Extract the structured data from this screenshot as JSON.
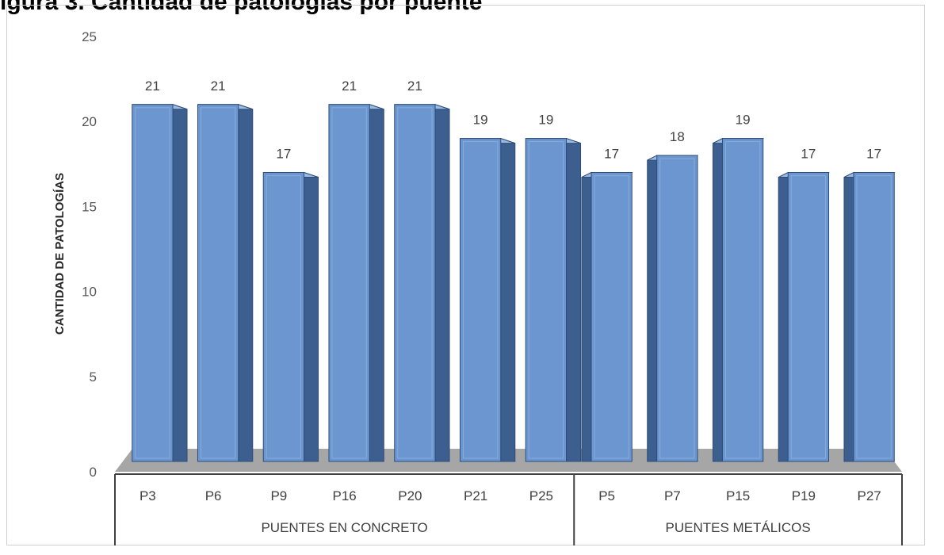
{
  "title": "igura 3. Cantidad de patologías por puente",
  "chart_data": {
    "type": "bar",
    "title": "",
    "xlabel": "",
    "ylabel": "CANTIDAD DE PATOLOGÍAS",
    "ylim": [
      0,
      25
    ],
    "yticks": [
      0,
      5,
      10,
      15,
      20,
      25
    ],
    "grid": false,
    "legend": "none",
    "groups": [
      {
        "name": "PUENTES EN CONCRETO",
        "categories": [
          "P3",
          "P6",
          "P9",
          "P16",
          "P20",
          "P21",
          "P25"
        ],
        "values": [
          21,
          21,
          17,
          21,
          21,
          19,
          19
        ]
      },
      {
        "name": "PUENTES METÁLICOS",
        "categories": [
          "P5",
          "P7",
          "P15",
          "P19",
          "P27"
        ],
        "values": [
          17,
          18,
          19,
          17,
          17
        ]
      }
    ],
    "colors": {
      "bar_front": "#6b96cf",
      "bar_side": "#3c5f8f",
      "bar_top": "#9bbbe3",
      "floor": "#a6a6a6"
    }
  }
}
